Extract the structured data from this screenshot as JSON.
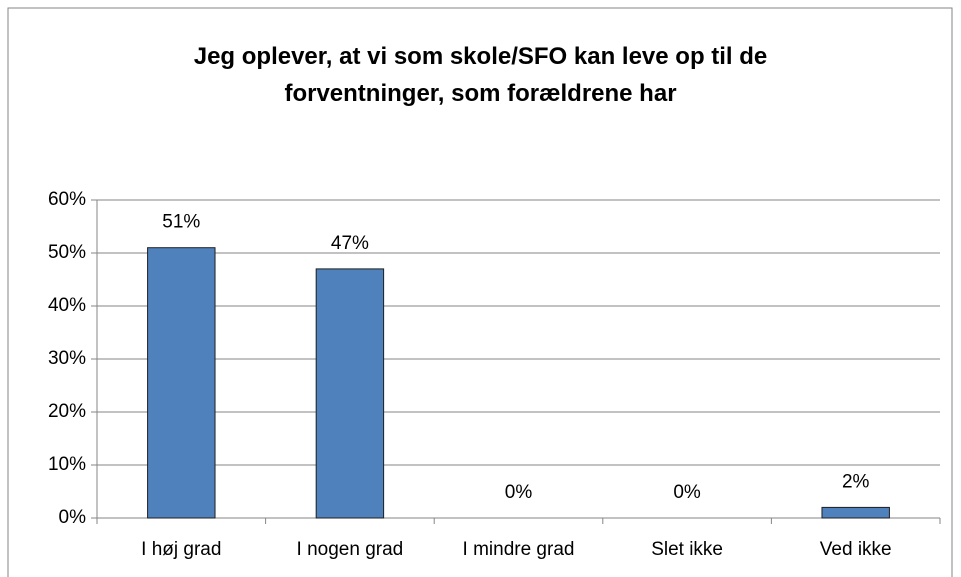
{
  "chart_data": {
    "type": "bar",
    "title": "Jeg oplever, at vi som skole/SFO kan leve op til de forventninger, som forældrene har",
    "categories": [
      "I høj grad",
      "I nogen grad",
      "I mindre grad",
      "Slet ikke",
      "Ved ikke"
    ],
    "values": [
      51,
      47,
      0,
      0,
      2
    ],
    "value_labels": [
      "51%",
      "47%",
      "0%",
      "0%",
      "2%"
    ],
    "color": "#4f81bd",
    "ylim": [
      0,
      60
    ],
    "yticks": [
      {
        "value": 0,
        "label": "0%"
      },
      {
        "value": 10,
        "label": "10%"
      },
      {
        "value": 20,
        "label": "20%"
      },
      {
        "value": 30,
        "label": "30%"
      },
      {
        "value": 40,
        "label": "40%"
      },
      {
        "value": 50,
        "label": "50%"
      },
      {
        "value": 60,
        "label": "60%"
      }
    ],
    "grid": true
  }
}
